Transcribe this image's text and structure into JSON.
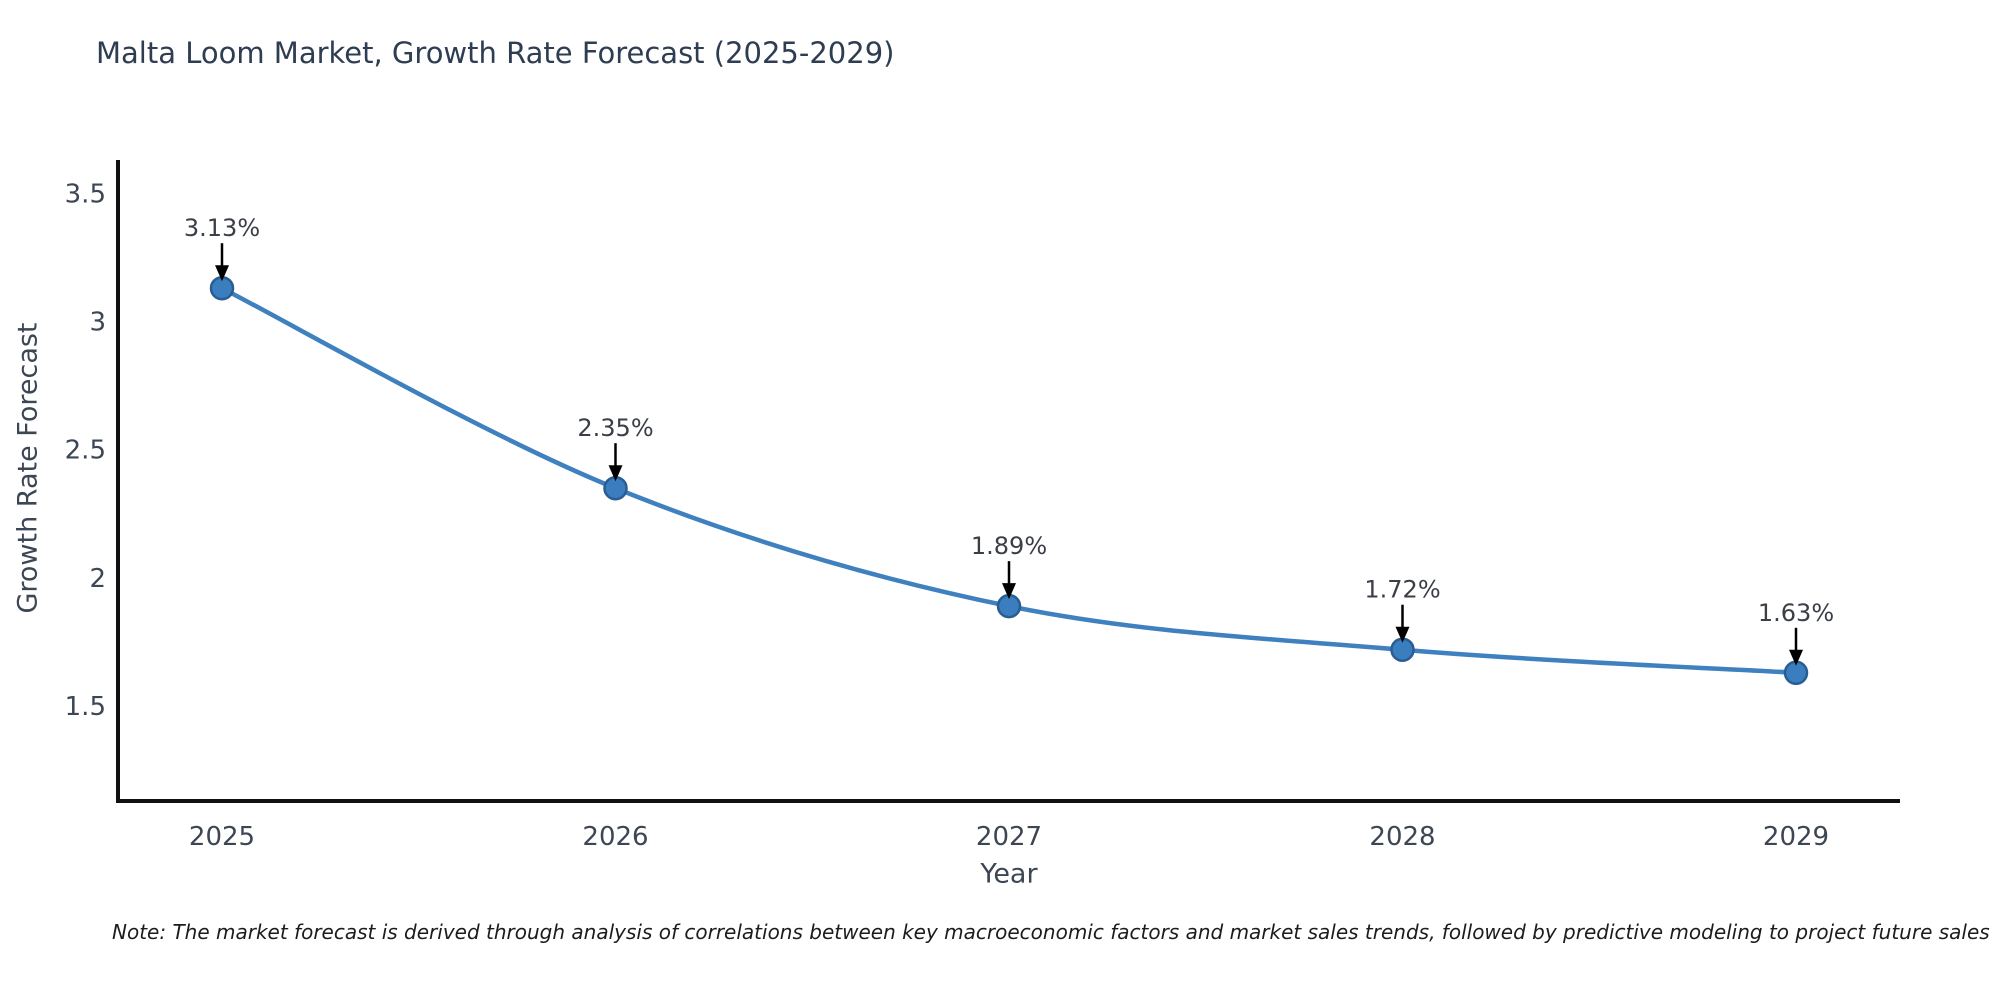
{
  "chart": {
    "title": "Malta Loom Market, Growth Rate Forecast (2025-2029)",
    "xlabel": "Year",
    "ylabel": "Growth Rate Forecast",
    "note": "Note: The market forecast is derived through analysis of correlations between key macroeconomic factors and market sales trends, followed by predictive modeling to project future sales"
  },
  "chart_data": {
    "type": "line",
    "title": "Malta Loom Market, Growth Rate Forecast (2025-2029)",
    "categories": [
      "2025",
      "2026",
      "2027",
      "2028",
      "2029"
    ],
    "values": [
      3.13,
      2.35,
      1.89,
      1.72,
      1.63
    ],
    "point_labels": [
      "3.13%",
      "2.35%",
      "1.89%",
      "1.72%",
      "1.63%"
    ],
    "xlabel": "Year",
    "ylabel": "Growth Rate Forecast",
    "y_ticks": [
      1.5,
      2,
      2.5,
      3,
      3.5
    ],
    "ylim": [
      1.13,
      3.63
    ],
    "grid": false,
    "legend": false,
    "annotations": "down-arrow from value label to marker",
    "colors": {
      "line": "#3f80bf",
      "marker_fill": "#3b7ec0",
      "marker_edge": "#2a5d92",
      "arrow": "#000000",
      "spine": "#111111",
      "title_text": "#2e3d52",
      "tick_text": "#3d4654",
      "annotation_text": "#3a3f47"
    }
  }
}
